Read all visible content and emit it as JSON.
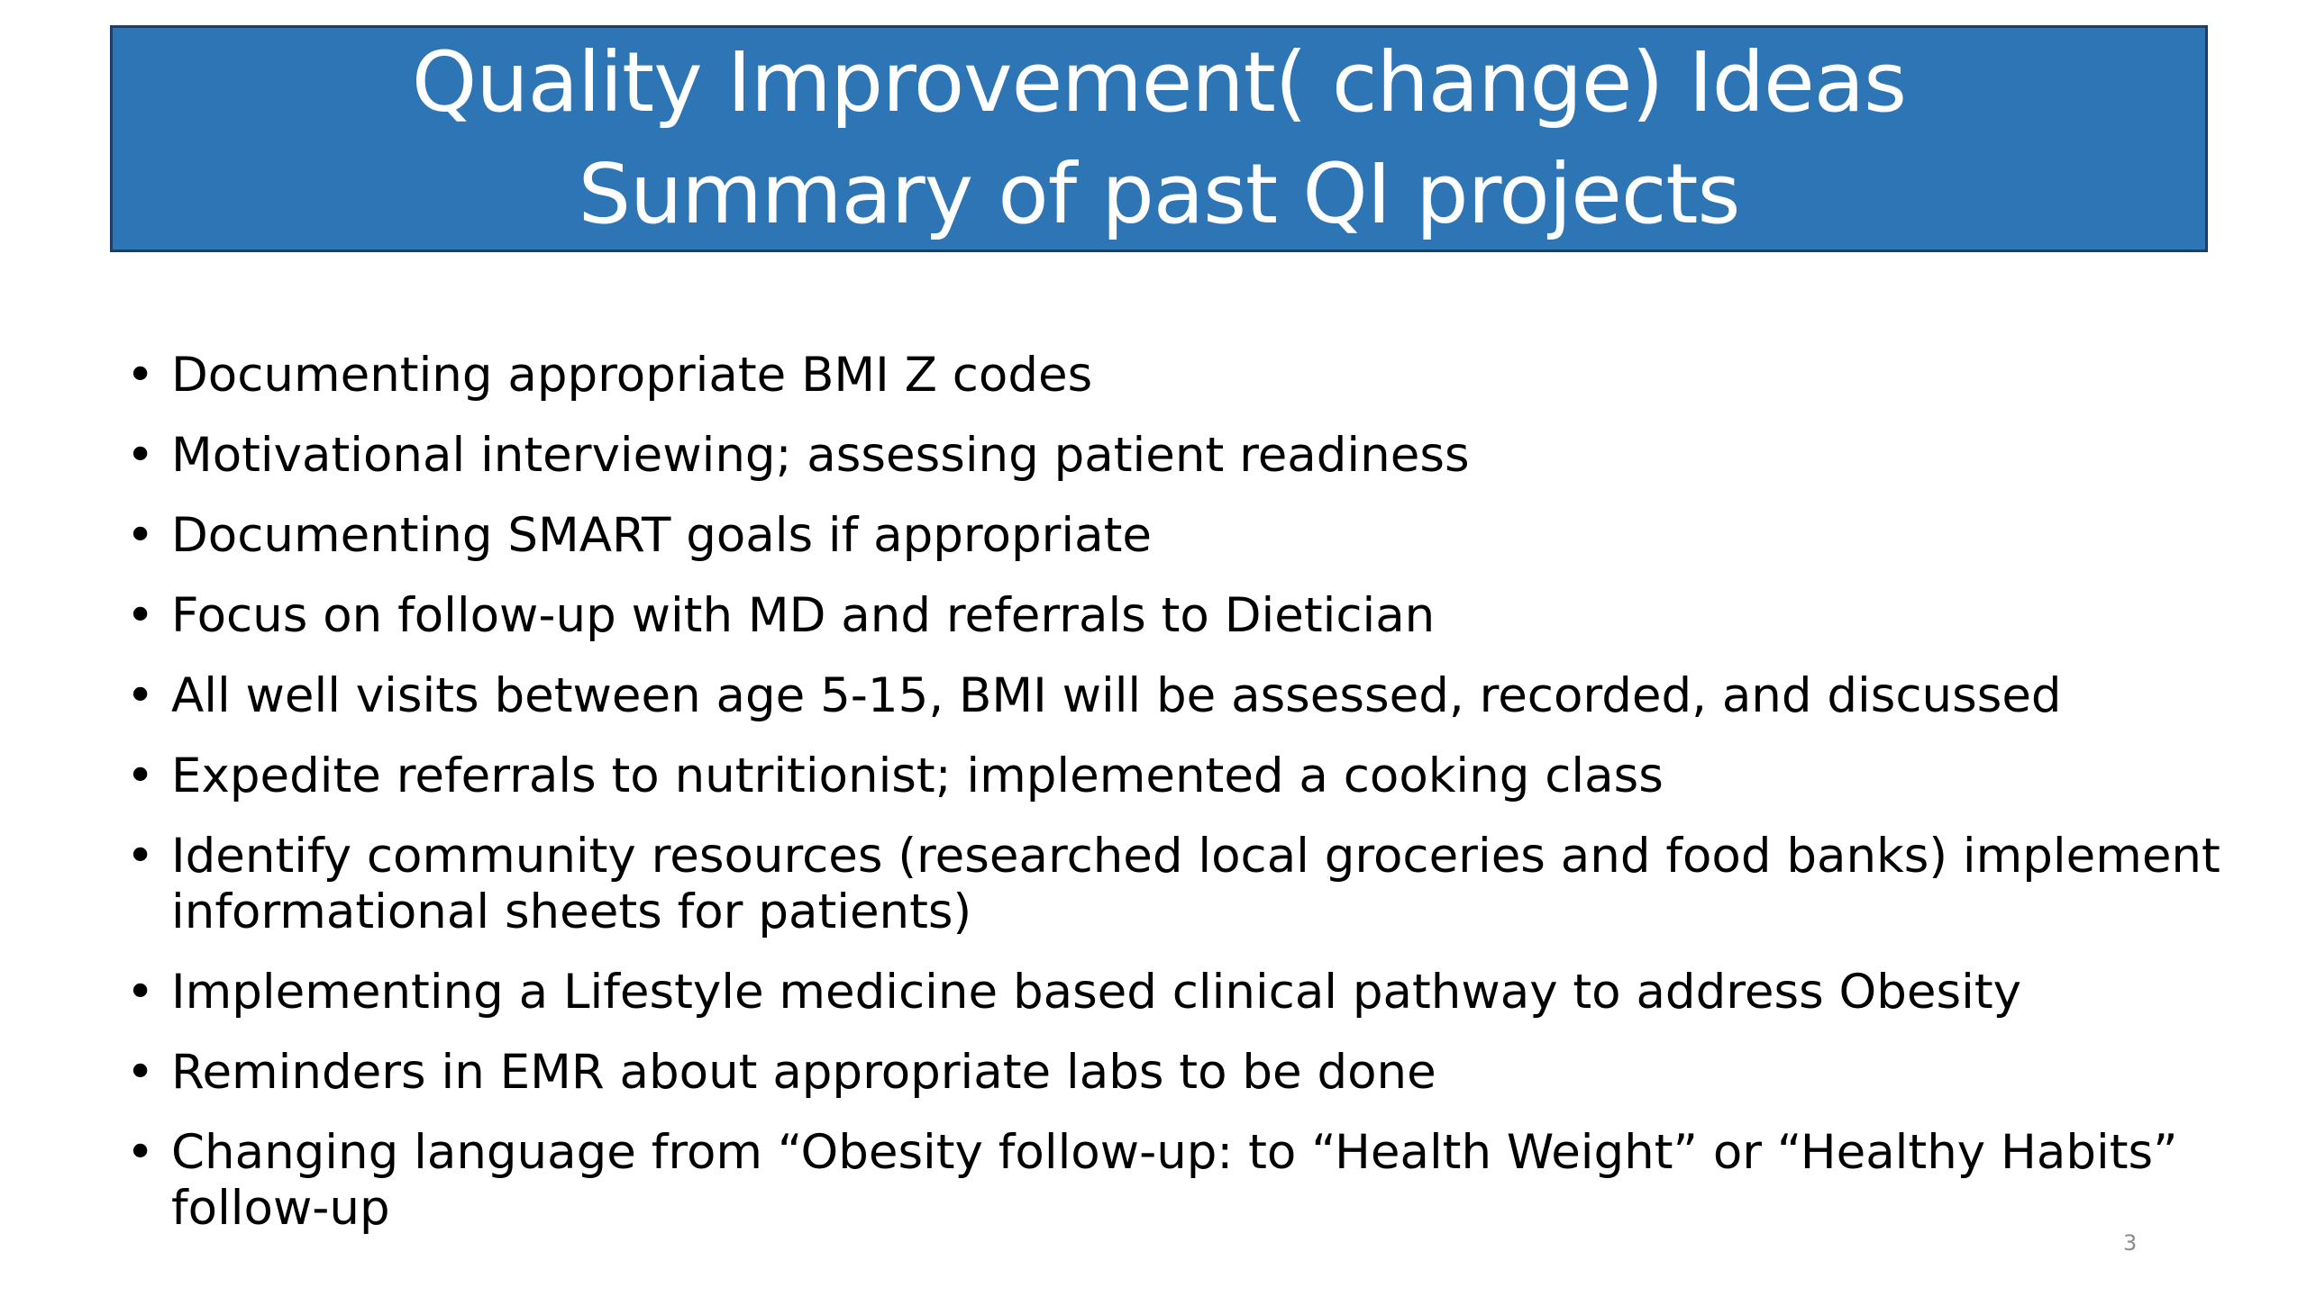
{
  "slide": {
    "title_line_1": "Quality Improvement( change) Ideas",
    "title_line_2": "Summary of past QI projects",
    "bullet_glyph": "•",
    "bullets": [
      "Documenting appropriate BMI Z codes",
      "Motivational interviewing; assessing patient readiness",
      "Documenting SMART goals if appropriate",
      "Focus on follow-up with MD and referrals to Dietician",
      "All well visits between age 5-15, BMI will be assessed, recorded, and discussed",
      "Expedite referrals to nutritionist; implemented a cooking class",
      "Identify community resources (researched local groceries and food banks) implement informational sheets for patients)",
      "Implementing a Lifestyle medicine based clinical pathway to address Obesity",
      "Reminders in EMR about appropriate labs to be done",
      "Changing language from “Obesity follow-up: to “Health Weight” or “Healthy Habits” follow-up"
    ],
    "page_number": "3",
    "colors": {
      "title_background": "#2e75b6",
      "title_border": "#1f3e66",
      "title_text": "#ffffff",
      "body_text": "#000000",
      "page_number_text": "#8a8a8a"
    }
  }
}
